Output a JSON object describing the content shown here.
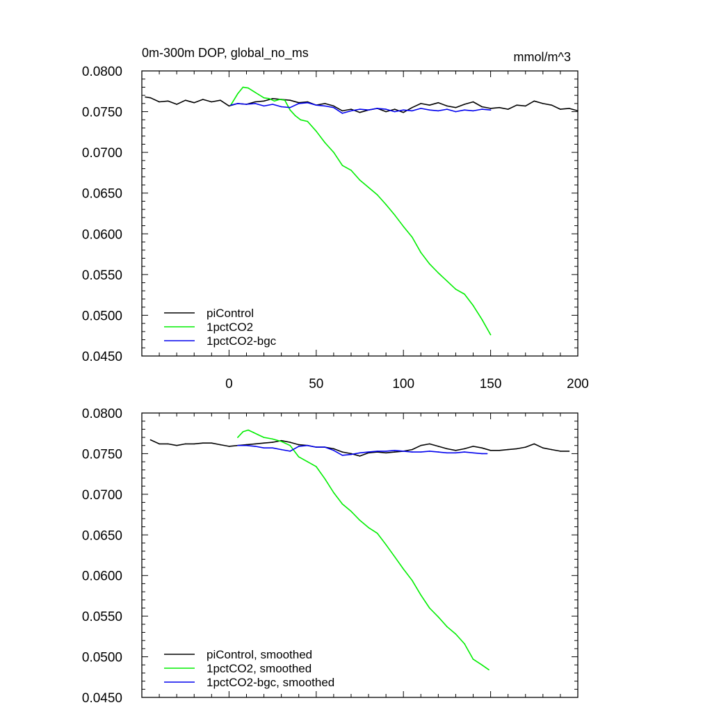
{
  "chart_data": [
    {
      "type": "line",
      "title": "0m-300m DOP, global_no_ms",
      "units": "mmol/m^3",
      "ylim": [
        0.045,
        0.08
      ],
      "xlim": [
        -50,
        200
      ],
      "yticks": [
        "0.0800",
        "0.0750",
        "0.0700",
        "0.0650",
        "0.0600",
        "0.0550",
        "0.0500",
        "0.0450"
      ],
      "xticks": [
        "0",
        "50",
        "100",
        "150",
        "200"
      ],
      "legend_position": "bottom-left",
      "series": [
        {
          "name": "piControl",
          "color": "#000000",
          "x": [
            -48,
            -45,
            -40,
            -35,
            -30,
            -25,
            -20,
            -15,
            -10,
            -5,
            0,
            5,
            10,
            15,
            20,
            25,
            30,
            35,
            40,
            45,
            50,
            55,
            60,
            65,
            70,
            75,
            80,
            85,
            90,
            95,
            100,
            105,
            110,
            115,
            120,
            125,
            130,
            135,
            140,
            145,
            150,
            155,
            160,
            165,
            170,
            175,
            180,
            185,
            190,
            195,
            200
          ],
          "y": [
            0.0768,
            0.0767,
            0.0762,
            0.0763,
            0.0759,
            0.0764,
            0.0761,
            0.0765,
            0.0762,
            0.0764,
            0.0757,
            0.076,
            0.0759,
            0.0762,
            0.0763,
            0.0766,
            0.0765,
            0.0764,
            0.0761,
            0.0762,
            0.0758,
            0.076,
            0.0757,
            0.0751,
            0.0753,
            0.0749,
            0.0752,
            0.0754,
            0.075,
            0.0753,
            0.0749,
            0.0755,
            0.076,
            0.0758,
            0.0761,
            0.0757,
            0.0755,
            0.0759,
            0.0762,
            0.0756,
            0.0754,
            0.0755,
            0.0753,
            0.0758,
            0.0757,
            0.0763,
            0.076,
            0.0758,
            0.0753,
            0.0754,
            0.0751
          ]
        },
        {
          "name": "1pctCO2",
          "color": "#00ee00",
          "x": [
            1,
            5,
            8,
            11,
            14,
            17,
            20,
            23,
            26,
            29,
            32,
            35,
            38,
            41,
            45,
            50,
            55,
            60,
            65,
            70,
            75,
            80,
            85,
            90,
            95,
            100,
            105,
            110,
            115,
            120,
            125,
            130,
            135,
            140,
            145,
            150
          ],
          "y": [
            0.0758,
            0.0772,
            0.078,
            0.0779,
            0.0775,
            0.0771,
            0.0767,
            0.0766,
            0.0763,
            0.0765,
            0.0764,
            0.0752,
            0.0745,
            0.074,
            0.0738,
            0.0726,
            0.0712,
            0.07,
            0.0684,
            0.0678,
            0.0666,
            0.0657,
            0.0648,
            0.0636,
            0.0623,
            0.0609,
            0.0596,
            0.0577,
            0.0563,
            0.0552,
            0.0542,
            0.0532,
            0.0526,
            0.0512,
            0.0495,
            0.0476
          ]
        },
        {
          "name": "1pctCO2-bgc",
          "color": "#0000ee",
          "x": [
            1,
            5,
            10,
            15,
            20,
            25,
            30,
            35,
            40,
            45,
            50,
            55,
            60,
            65,
            70,
            75,
            80,
            85,
            90,
            95,
            100,
            105,
            110,
            115,
            120,
            125,
            130,
            135,
            140,
            145,
            150
          ],
          "y": [
            0.0758,
            0.076,
            0.0759,
            0.076,
            0.0757,
            0.0759,
            0.0756,
            0.0755,
            0.076,
            0.0761,
            0.0758,
            0.0757,
            0.0755,
            0.0748,
            0.0751,
            0.0753,
            0.0752,
            0.0754,
            0.0753,
            0.075,
            0.0752,
            0.0751,
            0.0754,
            0.0752,
            0.0751,
            0.0753,
            0.075,
            0.0752,
            0.0751,
            0.0753,
            0.0752
          ]
        }
      ]
    },
    {
      "type": "line",
      "ylim": [
        0.045,
        0.08
      ],
      "xlim": [
        -50,
        200
      ],
      "yticks": [
        "0.0800",
        "0.0750",
        "0.0700",
        "0.0650",
        "0.0600",
        "0.0550",
        "0.0500",
        "0.0450"
      ],
      "legend_position": "bottom-left",
      "series": [
        {
          "name": "piControl, smoothed",
          "color": "#000000",
          "x": [
            -45,
            -40,
            -35,
            -30,
            -25,
            -20,
            -15,
            -10,
            -5,
            0,
            5,
            10,
            15,
            20,
            25,
            30,
            35,
            40,
            45,
            50,
            55,
            60,
            65,
            70,
            75,
            80,
            85,
            90,
            95,
            100,
            105,
            110,
            115,
            120,
            125,
            130,
            135,
            140,
            145,
            150,
            155,
            160,
            165,
            170,
            175,
            180,
            185,
            190,
            195
          ],
          "y": [
            0.0767,
            0.0762,
            0.0762,
            0.076,
            0.0762,
            0.0762,
            0.0763,
            0.0763,
            0.0761,
            0.0759,
            0.076,
            0.0761,
            0.0762,
            0.0763,
            0.0764,
            0.0766,
            0.0764,
            0.0761,
            0.076,
            0.0758,
            0.0758,
            0.0756,
            0.0752,
            0.075,
            0.0747,
            0.0751,
            0.0752,
            0.0751,
            0.0752,
            0.0753,
            0.0755,
            0.076,
            0.0762,
            0.0759,
            0.0756,
            0.0754,
            0.0756,
            0.0759,
            0.0757,
            0.0754,
            0.0754,
            0.0755,
            0.0756,
            0.0758,
            0.0762,
            0.0757,
            0.0755,
            0.0753,
            0.0753
          ]
        },
        {
          "name": "1pctCO2, smoothed",
          "color": "#00ee00",
          "x": [
            5,
            8,
            11,
            14,
            17,
            20,
            25,
            30,
            35,
            40,
            45,
            50,
            55,
            60,
            65,
            70,
            75,
            80,
            85,
            90,
            95,
            100,
            105,
            110,
            115,
            120,
            125,
            130,
            135,
            140,
            145,
            149
          ],
          "y": [
            0.077,
            0.0777,
            0.0779,
            0.0776,
            0.0773,
            0.077,
            0.0768,
            0.0765,
            0.076,
            0.0746,
            0.074,
            0.0734,
            0.0719,
            0.0702,
            0.0688,
            0.0679,
            0.0668,
            0.0659,
            0.0652,
            0.0638,
            0.0623,
            0.0608,
            0.0594,
            0.0576,
            0.056,
            0.0549,
            0.0537,
            0.0528,
            0.0516,
            0.0497,
            0.049,
            0.0484
          ]
        },
        {
          "name": "1pctCO2-bgc, smoothed",
          "color": "#0000ee",
          "x": [
            5,
            10,
            15,
            20,
            25,
            30,
            35,
            40,
            45,
            50,
            55,
            60,
            65,
            70,
            75,
            80,
            85,
            90,
            95,
            100,
            105,
            110,
            115,
            120,
            125,
            130,
            135,
            140,
            145,
            148
          ],
          "y": [
            0.076,
            0.076,
            0.0759,
            0.0757,
            0.0757,
            0.0755,
            0.0753,
            0.0759,
            0.076,
            0.0758,
            0.0758,
            0.0754,
            0.0748,
            0.0749,
            0.0751,
            0.0752,
            0.0753,
            0.0753,
            0.0754,
            0.0753,
            0.0752,
            0.0752,
            0.0753,
            0.0752,
            0.0751,
            0.0751,
            0.0752,
            0.0751,
            0.075,
            0.075
          ]
        }
      ]
    }
  ]
}
